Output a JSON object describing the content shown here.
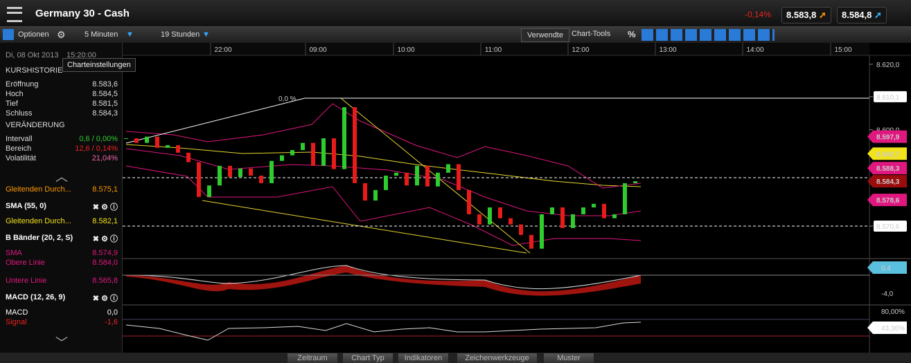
{
  "header": {
    "title": "Germany 30 - Cash",
    "change": "-0,14%",
    "bid": "8.583,8",
    "ask": "8.584,8"
  },
  "toolbar": {
    "options": "Optionen",
    "interval": "5 Minuten",
    "range": "19 Stunden",
    "used": "Verwendte",
    "tools": "Chart-Tools",
    "percent": "%"
  },
  "tooltip": "Charteinstellungen",
  "sidebar": {
    "date": "Di, 08 Okt 2013",
    "time": "15:20:00",
    "history": "KURSHISTORIE",
    "history_rows": [
      [
        "Eröffnung",
        "8.583,6"
      ],
      [
        "Hoch",
        "8.584,5"
      ],
      [
        "Tief",
        "8.581,5"
      ],
      [
        "Schluss",
        "8.584,3"
      ]
    ],
    "change_title": "VERÄNDERUNG",
    "change_rows": [
      [
        "Intervall",
        "0,6 / 0,00%"
      ],
      [
        "Bereich",
        "12,6 / 0,14%"
      ],
      [
        "Volatilität",
        "21,04%"
      ]
    ],
    "indicators": [
      {
        "label": "Gleitenden Durch...",
        "value": "8.575,1"
      },
      {
        "label": "SMA (55, 0)"
      },
      {
        "label": "Gleitenden Durch...",
        "value": "8.582,1"
      },
      {
        "label": "B Bänder (20, 2, S)"
      },
      {
        "label": "SMA",
        "value": "8.574,9"
      },
      {
        "label": "Obere Linie",
        "value": "8.584,0"
      },
      {
        "label": "Untere Linie",
        "value": "8.565,8"
      },
      {
        "label": "MACD (12, 26, 9)"
      },
      {
        "label": "MACD",
        "value": "0,0"
      },
      {
        "label": "Signal",
        "value": "-1,6"
      }
    ]
  },
  "chart": {
    "ylim": [
      8561.1,
      8622.1
    ],
    "yticks": [
      {
        "value": 8620,
        "label": "8.620,0"
      },
      {
        "value": 8610.1,
        "label": "8.610,1"
      },
      {
        "value": 8600,
        "label": "8.600,0"
      },
      {
        "value": 8570.6,
        "label": "8.570,6"
      }
    ],
    "flags": [
      {
        "value": 8597.9,
        "label": "8.597,9",
        "color": "#e0177f"
      },
      {
        "value": 8592.7,
        "label": "8.592,7",
        "color": "#f2e21a"
      },
      {
        "value": 8588.3,
        "label": "8.588,3",
        "color": "#e0177f"
      },
      {
        "value": 8584.3,
        "label": "8.584,3",
        "color": "#9b0d0d"
      },
      {
        "value": 8578.6,
        "label": "8.578,6",
        "color": "#e0177f"
      }
    ],
    "fib_label": "0,0 %",
    "times": [
      "22:00",
      "09:00",
      "10:00",
      "11:00",
      "12:00",
      "13:00",
      "14:00",
      "15:00"
    ],
    "close": [
      8597.4,
      8596.0,
      8597.9,
      8594.5,
      8595.3,
      8593.0,
      8590.1,
      8579.5,
      8583.0,
      8589.0,
      8585.6,
      8588.2,
      8586.0,
      8583.7,
      8590.5,
      8592.2,
      8593.8,
      8596.0,
      8589.0,
      8597.4,
      8588.0,
      8606.9,
      8583.7,
      8578.4,
      8581.6,
      8586.0,
      8586.9,
      8583.0,
      8589.0,
      8582.7,
      8586.9,
      8589.5,
      8581.6,
      8574.2,
      8571.1,
      8576.3,
      8573.0,
      8571.1,
      8567.9,
      8563.7,
      8574.2,
      8576.3,
      8570.0,
      8574.2,
      8576.3,
      8577.4,
      8573.0,
      8574.2,
      8583.7,
      8584.3
    ],
    "macd_labels": [
      "0,4",
      "-4,0"
    ],
    "rsi_labels": [
      "80,00%",
      "43,36%"
    ]
  },
  "bottom": [
    "Zeitraum",
    "Chart Typ",
    "Indikatoren",
    "Zeichenwerkzeuge",
    "Muster"
  ]
}
